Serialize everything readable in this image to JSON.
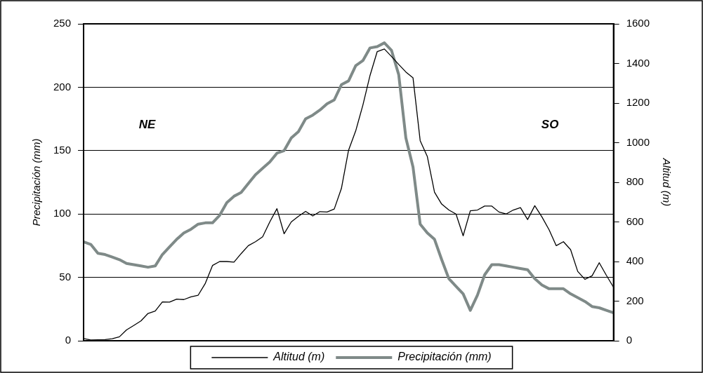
{
  "chart_data": {
    "type": "line",
    "ylabel": "Precipitación (mm)",
    "y2label": "Altitud (m)",
    "annotations": [
      "NE",
      "SO"
    ],
    "categories": [
      null,
      null,
      null,
      null,
      null,
      null,
      null,
      null,
      null,
      null,
      null,
      null,
      null,
      null,
      null,
      null,
      null,
      null,
      null,
      null,
      null,
      null,
      null,
      null,
      null,
      null,
      null,
      null,
      null,
      null,
      null,
      null,
      null,
      null,
      null,
      null,
      null,
      null,
      null,
      null,
      null,
      null,
      null,
      null,
      null,
      null,
      null,
      null,
      null,
      null,
      null,
      null,
      null,
      null,
      null,
      null,
      null,
      null,
      null,
      null,
      null,
      null,
      null,
      null,
      null,
      null,
      null,
      null,
      null,
      null,
      null,
      null,
      null,
      null,
      null
    ],
    "series": [
      {
        "name": "Precipitación (mm)",
        "color": "#7f8a88",
        "values": [
          78,
          76,
          69,
          68,
          66,
          64,
          61,
          60,
          59,
          58,
          59,
          68,
          74,
          80,
          85,
          88,
          92,
          93,
          93,
          99,
          109,
          114,
          117,
          124,
          131,
          136,
          141,
          148,
          150,
          160,
          165,
          175,
          178,
          182,
          187,
          190,
          202,
          205,
          217,
          221,
          231,
          232,
          235,
          229,
          210,
          160,
          137,
          92,
          85,
          80,
          64,
          49,
          43,
          37,
          24,
          36,
          52,
          60,
          60,
          59,
          58,
          57,
          56,
          49,
          44,
          41,
          41,
          41,
          37,
          34,
          31,
          27,
          26,
          24,
          22
        ]
      },
      {
        "name": "Altitud (m)",
        "color": "#000000",
        "axis": "y2",
        "values": [
          11,
          4,
          5,
          6,
          10,
          20,
          55,
          77,
          100,
          138,
          150,
          196,
          195,
          210,
          208,
          222,
          230,
          290,
          380,
          400,
          400,
          397,
          440,
          480,
          500,
          525,
          600,
          667,
          540,
          600,
          628,
          653,
          630,
          652,
          650,
          665,
          769,
          962,
          1060,
          1190,
          1340,
          1460,
          1473,
          1435,
          1395,
          1357,
          1327,
          1010,
          930,
          750,
          690,
          660,
          640,
          530,
          656,
          660,
          680,
          680,
          650,
          640,
          660,
          672,
          612,
          682,
          625,
          560,
          480,
          500,
          460,
          350,
          310,
          328,
          394,
          330,
          270
        ]
      }
    ],
    "ylim": [
      0,
      250
    ],
    "yticks": [
      0,
      50,
      100,
      150,
      200,
      250
    ],
    "y2lim": [
      0,
      1600
    ],
    "y2ticks": [
      0,
      200,
      400,
      600,
      800,
      1000,
      1200,
      1400,
      1600
    ],
    "grid": "y",
    "legend": "bottom",
    "marker": "none",
    "line_style": "solid"
  }
}
